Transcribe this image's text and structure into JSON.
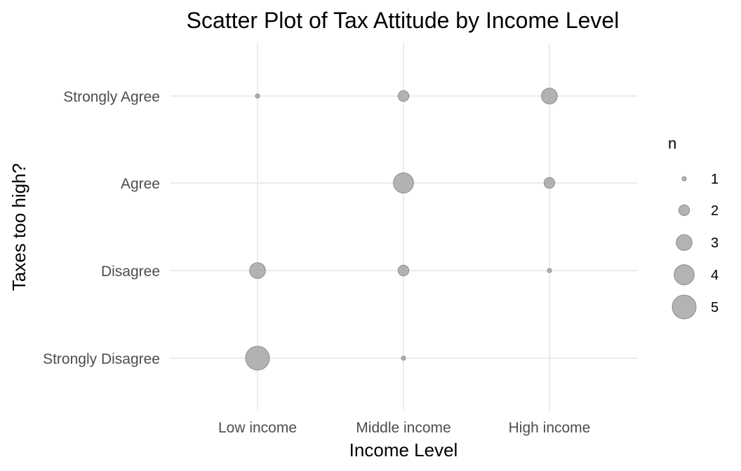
{
  "chart_data": {
    "type": "scatter",
    "title": "Scatter Plot of Tax Attitude by Income Level",
    "xlabel": "Income Level",
    "ylabel": "Taxes too high?",
    "x_categories": [
      "Low income",
      "Middle income",
      "High income"
    ],
    "y_categories": [
      "Strongly Disagree",
      "Disagree",
      "Agree",
      "Strongly Agree"
    ],
    "points": [
      {
        "x": "Low income",
        "y": "Strongly Agree",
        "n": 1
      },
      {
        "x": "Middle income",
        "y": "Strongly Agree",
        "n": 2
      },
      {
        "x": "High income",
        "y": "Strongly Agree",
        "n": 3
      },
      {
        "x": "Middle income",
        "y": "Agree",
        "n": 4
      },
      {
        "x": "High income",
        "y": "Agree",
        "n": 2
      },
      {
        "x": "Low income",
        "y": "Disagree",
        "n": 3
      },
      {
        "x": "Middle income",
        "y": "Disagree",
        "n": 2
      },
      {
        "x": "High income",
        "y": "Disagree",
        "n": 1
      },
      {
        "x": "Low income",
        "y": "Strongly Disagree",
        "n": 5
      },
      {
        "x": "Middle income",
        "y": "Strongly Disagree",
        "n": 1
      }
    ],
    "size_legend": {
      "title": "n",
      "values": [
        1,
        2,
        3,
        4,
        5
      ]
    },
    "legend_position": "right",
    "grid": true,
    "point_color": "#a6a6a6"
  }
}
